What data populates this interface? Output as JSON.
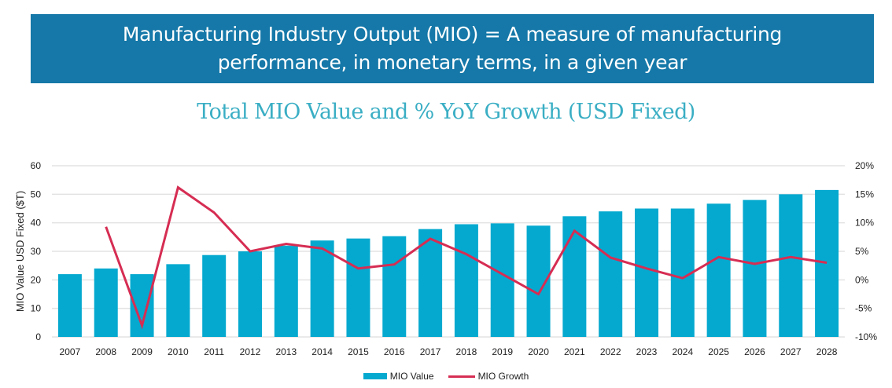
{
  "banner": {
    "line1": "Manufacturing Industry Output (MIO) =  A measure of manufacturing",
    "line2": "performance, in monetary terms, in a given year"
  },
  "colors": {
    "banner_bg": "#1578a8",
    "title": "#3aaec4",
    "bars": "#05a9cf",
    "line": "#d62d53",
    "grid": "#e3e3e3"
  },
  "chart_data": {
    "type": "bar",
    "title": "Total MIO Value and % YoY Growth (USD Fixed)",
    "xlabel": "",
    "ylabel": "MIO Value USD Fixed ($T)",
    "y2label": "",
    "ylim": [
      0,
      60
    ],
    "y2lim": [
      -10,
      20
    ],
    "yticks": [
      "0",
      "10",
      "20",
      "30",
      "40",
      "50",
      "60"
    ],
    "y2ticks": [
      "-10%",
      "-5%",
      "0%",
      "5%",
      "10%",
      "15%",
      "20%"
    ],
    "grid": true,
    "legend_position": "bottom",
    "categories": [
      "2007",
      "2008",
      "2009",
      "2010",
      "2011",
      "2012",
      "2013",
      "2014",
      "2015",
      "2016",
      "2017",
      "2018",
      "2019",
      "2020",
      "2021",
      "2022",
      "2023",
      "2024",
      "2025",
      "2026",
      "2027",
      "2028"
    ],
    "series": [
      {
        "name": "MIO Value",
        "type": "bar",
        "axis": "left",
        "values": [
          22,
          24,
          22,
          25.5,
          28.7,
          30,
          32,
          33.8,
          34.5,
          35.3,
          37.8,
          39.5,
          39.8,
          39,
          42.3,
          44,
          45,
          45,
          46.7,
          48,
          50,
          51.5
        ]
      },
      {
        "name": "MIO Growth",
        "type": "line",
        "axis": "right",
        "unit": "%",
        "values": [
          null,
          9.3,
          -8,
          16.2,
          11.8,
          5,
          6.3,
          5.5,
          2,
          2.7,
          7.2,
          4.5,
          1,
          -2.5,
          8.6,
          3.9,
          2,
          0.3,
          4,
          2.8,
          4,
          3
        ]
      }
    ]
  }
}
